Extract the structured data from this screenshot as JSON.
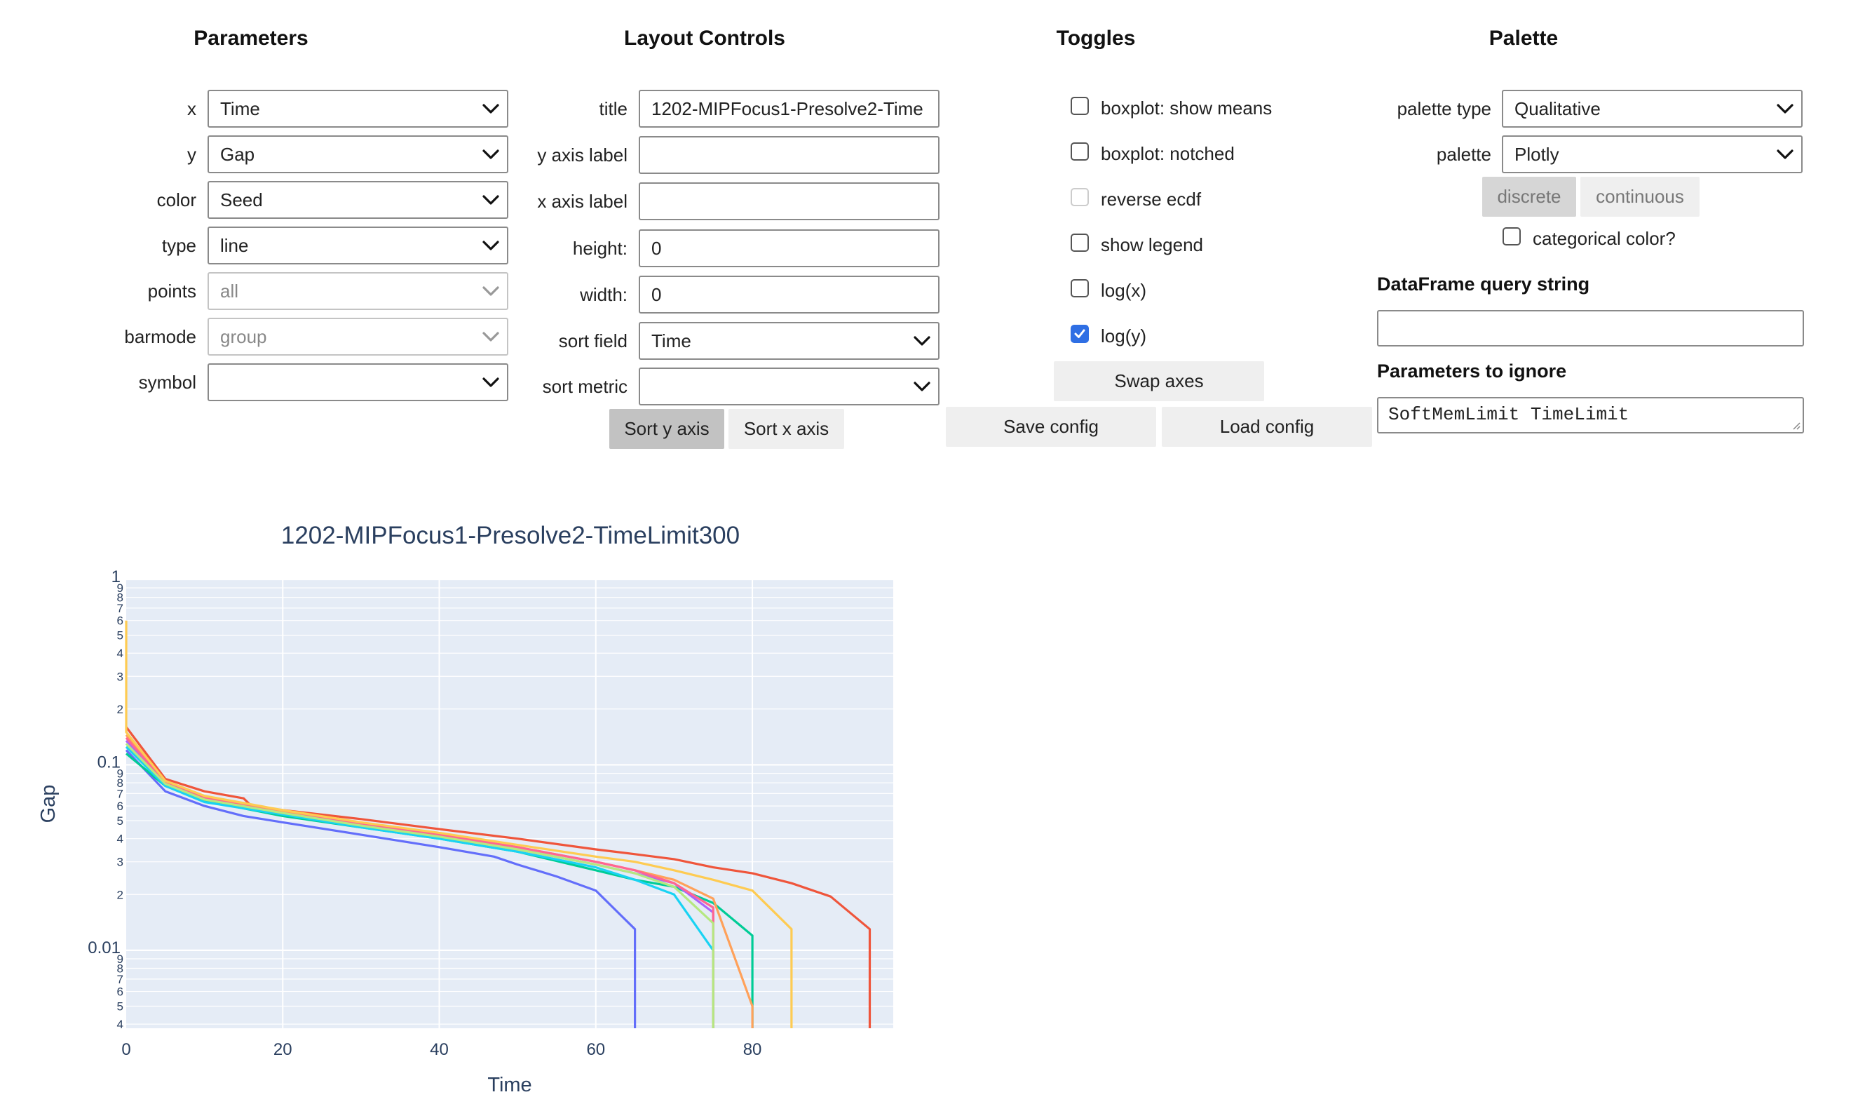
{
  "parameters": {
    "heading": "Parameters",
    "fields": [
      {
        "label": "x",
        "value": "Time",
        "disabled": false
      },
      {
        "label": "y",
        "value": "Gap",
        "disabled": false
      },
      {
        "label": "color",
        "value": "Seed",
        "disabled": false
      },
      {
        "label": "type",
        "value": "line",
        "disabled": false
      },
      {
        "label": "points",
        "value": "all",
        "disabled": true
      },
      {
        "label": "barmode",
        "value": "group",
        "disabled": true
      },
      {
        "label": "symbol",
        "value": "",
        "disabled": false
      }
    ]
  },
  "layout_controls": {
    "heading": "Layout Controls",
    "title_label": "title",
    "title_value": "1202-MIPFocus1-Presolve2-Time",
    "y_axis_label_label": "y axis label",
    "y_axis_label_value": "",
    "x_axis_label_label": "x axis label",
    "x_axis_label_value": "",
    "height_label": "height:",
    "height_value": "0",
    "width_label": "width:",
    "width_value": "0",
    "sort_field_label": "sort field",
    "sort_field_value": "Time",
    "sort_metric_label": "sort metric",
    "sort_metric_value": "",
    "sort_y_label": "Sort y axis",
    "sort_x_label": "Sort x axis"
  },
  "toggles": {
    "heading": "Toggles",
    "items": [
      {
        "label": "boxplot: show means",
        "checked": false,
        "disabled": false
      },
      {
        "label": "boxplot: notched",
        "checked": false,
        "disabled": false
      },
      {
        "label": "reverse ecdf",
        "checked": false,
        "disabled": true
      },
      {
        "label": "show legend",
        "checked": false,
        "disabled": false
      },
      {
        "label": "log(x)",
        "checked": false,
        "disabled": false
      },
      {
        "label": "log(y)",
        "checked": true,
        "disabled": false
      }
    ],
    "swap_axes_label": "Swap axes",
    "save_config_label": "Save config",
    "load_config_label": "Load config"
  },
  "palette": {
    "heading": "Palette",
    "palette_type_label": "palette type",
    "palette_type_value": "Qualitative",
    "palette_label": "palette",
    "palette_value": "Plotly",
    "discrete_label": "discrete",
    "continuous_label": "continuous",
    "categorical_label": "categorical color?",
    "categorical_checked": false,
    "query_label": "DataFrame query string",
    "query_value": "",
    "ignore_label": "Parameters to ignore",
    "ignore_value": "SoftMemLimit TimeLimit"
  },
  "chart_data": {
    "type": "line",
    "title": "1202-MIPFocus1-Presolve2-TimeLimit300",
    "xlabel": "Time",
    "ylabel": "Gap",
    "x_scale": "linear",
    "y_scale": "log",
    "xlim": [
      0,
      98
    ],
    "ylim": [
      0.0038,
      1.0
    ],
    "x_ticks": [
      "0",
      "20",
      "40",
      "60",
      "80"
    ],
    "y_ticks_major": [
      "1",
      "0.1",
      "0.01"
    ],
    "y_ticks_minor": [
      "9",
      "8",
      "7",
      "6",
      "5",
      "4",
      "3",
      "2"
    ],
    "legend": "none",
    "grid": true,
    "series": [
      {
        "color": "#636efa",
        "x": [
          0,
          5,
          10,
          15,
          20,
          30,
          40,
          47,
          50,
          55,
          60,
          65,
          65
        ],
        "y": [
          0.12,
          0.072,
          0.06,
          0.053,
          0.049,
          0.042,
          0.036,
          0.032,
          0.029,
          0.025,
          0.021,
          0.013,
          0.0035
        ]
      },
      {
        "color": "#ef553b",
        "x": [
          0,
          5,
          10,
          15,
          16,
          20,
          30,
          40,
          50,
          60,
          65,
          70,
          75,
          80,
          85,
          90,
          95,
          95
        ],
        "y": [
          0.16,
          0.084,
          0.072,
          0.066,
          0.06,
          0.057,
          0.051,
          0.045,
          0.04,
          0.035,
          0.033,
          0.031,
          0.028,
          0.026,
          0.023,
          0.0195,
          0.013,
          0.0035
        ]
      },
      {
        "color": "#00cc96",
        "x": [
          0,
          5,
          10,
          20,
          30,
          40,
          50,
          60,
          65,
          70,
          75,
          80,
          80
        ],
        "y": [
          0.115,
          0.077,
          0.064,
          0.053,
          0.046,
          0.04,
          0.034,
          0.027,
          0.024,
          0.022,
          0.018,
          0.012,
          0.0035
        ]
      },
      {
        "color": "#ab63fa",
        "x": [
          0,
          5,
          10,
          20,
          30,
          40,
          50,
          60,
          65,
          70,
          75,
          75
        ],
        "y": [
          0.135,
          0.08,
          0.066,
          0.055,
          0.047,
          0.041,
          0.035,
          0.029,
          0.026,
          0.023,
          0.016,
          0.0035
        ]
      },
      {
        "color": "#ffa15a",
        "x": [
          0,
          5,
          10,
          20,
          30,
          40,
          50,
          60,
          65,
          70,
          75,
          80,
          80
        ],
        "y": [
          0.145,
          0.081,
          0.067,
          0.056,
          0.048,
          0.042,
          0.036,
          0.03,
          0.027,
          0.024,
          0.019,
          0.005,
          0.0035
        ]
      },
      {
        "color": "#19d3f3",
        "x": [
          0,
          5,
          10,
          20,
          30,
          40,
          50,
          60,
          65,
          70,
          75,
          75
        ],
        "y": [
          0.125,
          0.077,
          0.063,
          0.054,
          0.046,
          0.04,
          0.034,
          0.028,
          0.024,
          0.02,
          0.01,
          0.0035
        ]
      },
      {
        "color": "#ff6692",
        "x": [
          0,
          5,
          10,
          20,
          30,
          40,
          50,
          60,
          65,
          70,
          75,
          75
        ],
        "y": [
          0.14,
          0.08,
          0.066,
          0.055,
          0.048,
          0.042,
          0.036,
          0.03,
          0.027,
          0.023,
          0.017,
          0.0035
        ]
      },
      {
        "color": "#b6e880",
        "x": [
          0,
          5,
          10,
          20,
          30,
          40,
          50,
          60,
          65,
          70,
          75,
          75
        ],
        "y": [
          0.13,
          0.079,
          0.065,
          0.055,
          0.047,
          0.041,
          0.035,
          0.029,
          0.026,
          0.022,
          0.014,
          0.0035
        ]
      },
      {
        "color": "#fecb52",
        "x": [
          0,
          0,
          5,
          10,
          20,
          30,
          40,
          50,
          60,
          65,
          70,
          75,
          80,
          85,
          85
        ],
        "y": [
          0.6,
          0.15,
          0.082,
          0.068,
          0.057,
          0.049,
          0.043,
          0.037,
          0.032,
          0.03,
          0.027,
          0.024,
          0.021,
          0.013,
          0.0035
        ]
      }
    ]
  }
}
